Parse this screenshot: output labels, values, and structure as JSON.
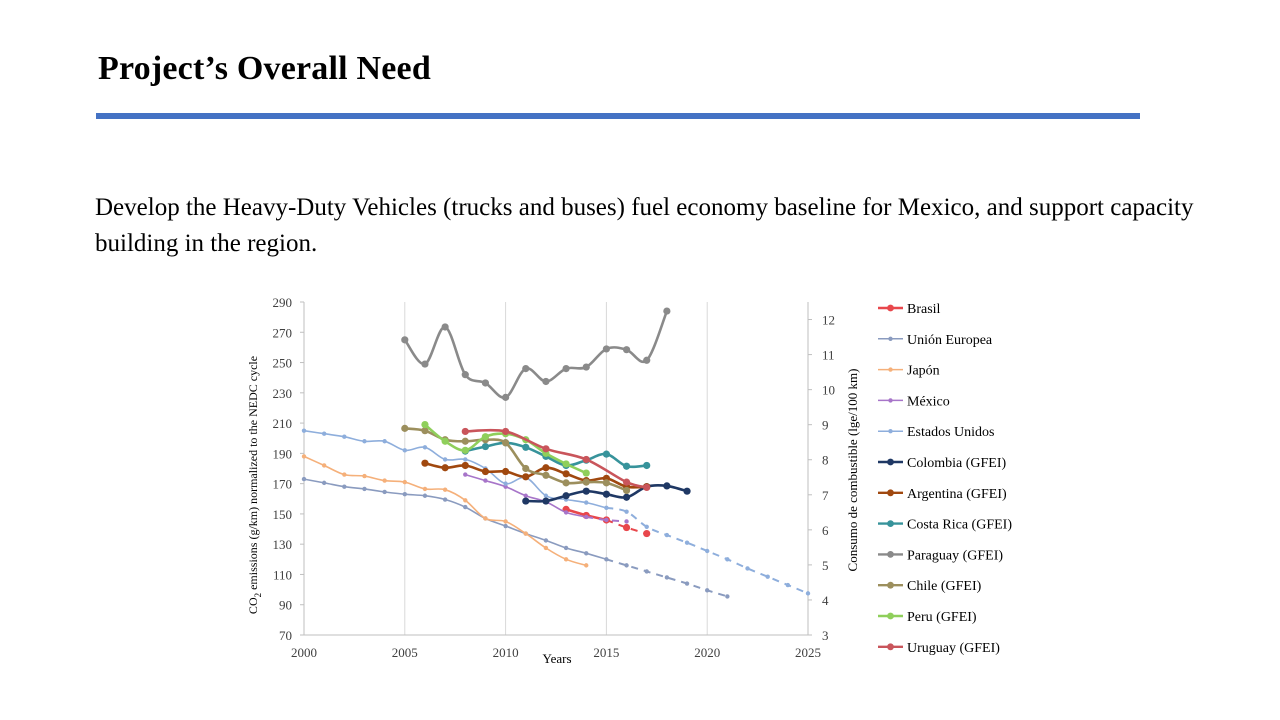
{
  "slide": {
    "title": "Project’s Overall Need",
    "body": "Develop the Heavy-Duty Vehicles (trucks and buses) fuel economy baseline for Mexico, and support capacity building in the region."
  },
  "colors": {
    "accent": "#4472c4"
  },
  "chart_data": {
    "type": "line",
    "title": "",
    "xlabel": "Years",
    "ylabel_main": "CO",
    "ylabel_sub": "2",
    "ylabel_rest": " emissions (g/km) normalized to the NEDC cycle",
    "y2label": "Consumo de combustible (lge/100 km)",
    "xlim": [
      2000,
      2025
    ],
    "ylim": [
      70,
      290
    ],
    "y2lim": [
      3,
      12.5
    ],
    "xticks": [
      2000,
      2005,
      2010,
      2015,
      2020,
      2025
    ],
    "yticks": [
      70,
      90,
      110,
      130,
      150,
      170,
      190,
      210,
      230,
      250,
      270,
      290
    ],
    "y2ticks": [
      3,
      4,
      5,
      6,
      7,
      8,
      9,
      10,
      11,
      12
    ],
    "grid": "vertical",
    "legend_position": "right",
    "series": [
      {
        "name": "Brasil",
        "color": "#e8474c",
        "marker": "circle",
        "smooth": false,
        "values": [
          [
            2013,
            153
          ],
          [
            2014,
            149
          ],
          [
            2015,
            146
          ]
        ],
        "dashed": [
          [
            2015,
            146
          ],
          [
            2016,
            141
          ],
          [
            2017,
            137
          ]
        ]
      },
      {
        "name": "Unión Europea",
        "color": "#8a9bbf",
        "marker": "dot",
        "smooth": true,
        "values": [
          [
            2000,
            173
          ],
          [
            2001,
            170.5
          ],
          [
            2002,
            168
          ],
          [
            2003,
            166.5
          ],
          [
            2004,
            164.5
          ],
          [
            2005,
            163
          ],
          [
            2006,
            162
          ],
          [
            2007,
            159.5
          ],
          [
            2008,
            154.5
          ],
          [
            2009,
            147
          ],
          [
            2010,
            142
          ],
          [
            2011,
            137
          ],
          [
            2012,
            132.5
          ],
          [
            2013,
            127.5
          ],
          [
            2014,
            124
          ],
          [
            2015,
            120
          ]
        ],
        "dashed": [
          [
            2015,
            120
          ],
          [
            2016,
            116
          ],
          [
            2017,
            112
          ],
          [
            2018,
            108
          ],
          [
            2019,
            104
          ],
          [
            2020,
            99.5
          ],
          [
            2021,
            95.5
          ]
        ]
      },
      {
        "name": "Japón",
        "color": "#f5b07a",
        "marker": "dot",
        "smooth": true,
        "values": [
          [
            2000,
            188
          ],
          [
            2001,
            182
          ],
          [
            2002,
            176
          ],
          [
            2003,
            175
          ],
          [
            2004,
            172
          ],
          [
            2005,
            171
          ],
          [
            2006,
            166.5
          ],
          [
            2007,
            166
          ],
          [
            2008,
            159
          ],
          [
            2009,
            147
          ],
          [
            2010,
            145
          ],
          [
            2011,
            137
          ],
          [
            2012,
            127.5
          ],
          [
            2013,
            120
          ],
          [
            2014,
            116
          ]
        ],
        "dashed": []
      },
      {
        "name": "México",
        "color": "#a775c9",
        "marker": "dot",
        "smooth": true,
        "values": [
          [
            2008,
            176
          ],
          [
            2009,
            172
          ],
          [
            2010,
            168
          ],
          [
            2011,
            162
          ],
          [
            2012,
            158
          ],
          [
            2013,
            151
          ],
          [
            2014,
            148
          ]
        ],
        "dashed": [
          [
            2014,
            148
          ],
          [
            2015,
            146
          ],
          [
            2016,
            145
          ]
        ]
      },
      {
        "name": "Estados Unidos",
        "color": "#8eaedc",
        "marker": "dot",
        "smooth": true,
        "values": [
          [
            2000,
            205
          ],
          [
            2001,
            203
          ],
          [
            2002,
            201
          ],
          [
            2003,
            198
          ],
          [
            2004,
            198
          ],
          [
            2005,
            192
          ],
          [
            2006,
            194
          ],
          [
            2007,
            186
          ],
          [
            2008,
            186
          ],
          [
            2009,
            180
          ],
          [
            2010,
            170
          ],
          [
            2011,
            174
          ],
          [
            2012,
            162
          ],
          [
            2013,
            159.5
          ],
          [
            2014,
            157.5
          ],
          [
            2015,
            154
          ]
        ],
        "dashed": [
          [
            2015,
            154
          ],
          [
            2016,
            151.5
          ],
          [
            2017,
            141.5
          ],
          [
            2018,
            136
          ],
          [
            2019,
            131
          ],
          [
            2020,
            125.5
          ],
          [
            2021,
            120
          ],
          [
            2022,
            114
          ],
          [
            2023,
            108.5
          ],
          [
            2024,
            103
          ],
          [
            2025,
            97.5
          ]
        ]
      },
      {
        "name": "Colombia (GFEI)",
        "color": "#1f3864",
        "marker": "circle",
        "smooth": true,
        "values": [
          [
            2011,
            158.5
          ],
          [
            2012,
            158.5
          ],
          [
            2013,
            162
          ],
          [
            2014,
            165
          ],
          [
            2015,
            163
          ],
          [
            2016,
            161
          ],
          [
            2017,
            168
          ],
          [
            2018,
            168.5
          ],
          [
            2019,
            165
          ]
        ],
        "dashed": []
      },
      {
        "name": "Argentina (GFEI)",
        "color": "#a0480f",
        "marker": "circle",
        "smooth": true,
        "values": [
          [
            2006,
            183.5
          ],
          [
            2007,
            180.5
          ],
          [
            2008,
            182
          ],
          [
            2009,
            178
          ],
          [
            2010,
            178
          ],
          [
            2011,
            174.5
          ],
          [
            2012,
            180.5
          ],
          [
            2013,
            176.5
          ],
          [
            2014,
            172
          ],
          [
            2015,
            173.5
          ],
          [
            2016,
            168
          ],
          [
            2017,
            168
          ]
        ],
        "dashed": []
      },
      {
        "name": "Costa Rica (GFEI)",
        "color": "#37939b",
        "marker": "circle",
        "smooth": true,
        "values": [
          [
            2008,
            191.5
          ],
          [
            2009,
            194.5
          ],
          [
            2010,
            197
          ],
          [
            2011,
            194
          ],
          [
            2012,
            188
          ],
          [
            2013,
            182
          ],
          [
            2014,
            185.5
          ],
          [
            2015,
            189.5
          ],
          [
            2016,
            181.5
          ],
          [
            2017,
            182
          ]
        ],
        "dashed": []
      },
      {
        "name": "Paraguay (GFEI)",
        "color": "#8a8a8a",
        "marker": "circle",
        "smooth": true,
        "values": [
          [
            2005,
            265
          ],
          [
            2006,
            249
          ],
          [
            2007,
            273.5
          ],
          [
            2008,
            242
          ],
          [
            2009,
            236.5
          ],
          [
            2010,
            227
          ],
          [
            2011,
            246
          ],
          [
            2012,
            237.5
          ],
          [
            2013,
            246
          ],
          [
            2014,
            247
          ],
          [
            2015,
            259
          ],
          [
            2016,
            258.5
          ],
          [
            2017,
            251.5
          ],
          [
            2018,
            284
          ]
        ],
        "dashed": []
      },
      {
        "name": "Chile (GFEI)",
        "color": "#9c8f5d",
        "marker": "circle",
        "smooth": true,
        "values": [
          [
            2005,
            206.5
          ],
          [
            2006,
            205
          ],
          [
            2007,
            199
          ],
          [
            2008,
            198
          ],
          [
            2009,
            199
          ],
          [
            2010,
            197
          ],
          [
            2011,
            180
          ],
          [
            2012,
            175.5
          ],
          [
            2013,
            170.5
          ],
          [
            2014,
            171
          ],
          [
            2015,
            170.5
          ],
          [
            2016,
            165.5
          ]
        ],
        "dashed": []
      },
      {
        "name": "Peru (GFEI)",
        "color": "#8fcf5b",
        "marker": "circle",
        "smooth": true,
        "values": [
          [
            2006,
            209
          ],
          [
            2007,
            198
          ],
          [
            2008,
            192
          ],
          [
            2009,
            201
          ],
          [
            2010,
            203
          ],
          [
            2011,
            199
          ],
          [
            2012,
            190
          ],
          [
            2013,
            183
          ],
          [
            2014,
            177
          ]
        ],
        "dashed": []
      },
      {
        "name": "Uruguay (GFEI)",
        "color": "#c9555b",
        "marker": "circle",
        "smooth": true,
        "values": [
          [
            2008,
            204.5
          ],
          [
            2010,
            204.5
          ],
          [
            2012,
            193
          ],
          [
            2014,
            186
          ],
          [
            2016,
            171
          ],
          [
            2017,
            167.5
          ]
        ],
        "dashed": []
      }
    ]
  }
}
